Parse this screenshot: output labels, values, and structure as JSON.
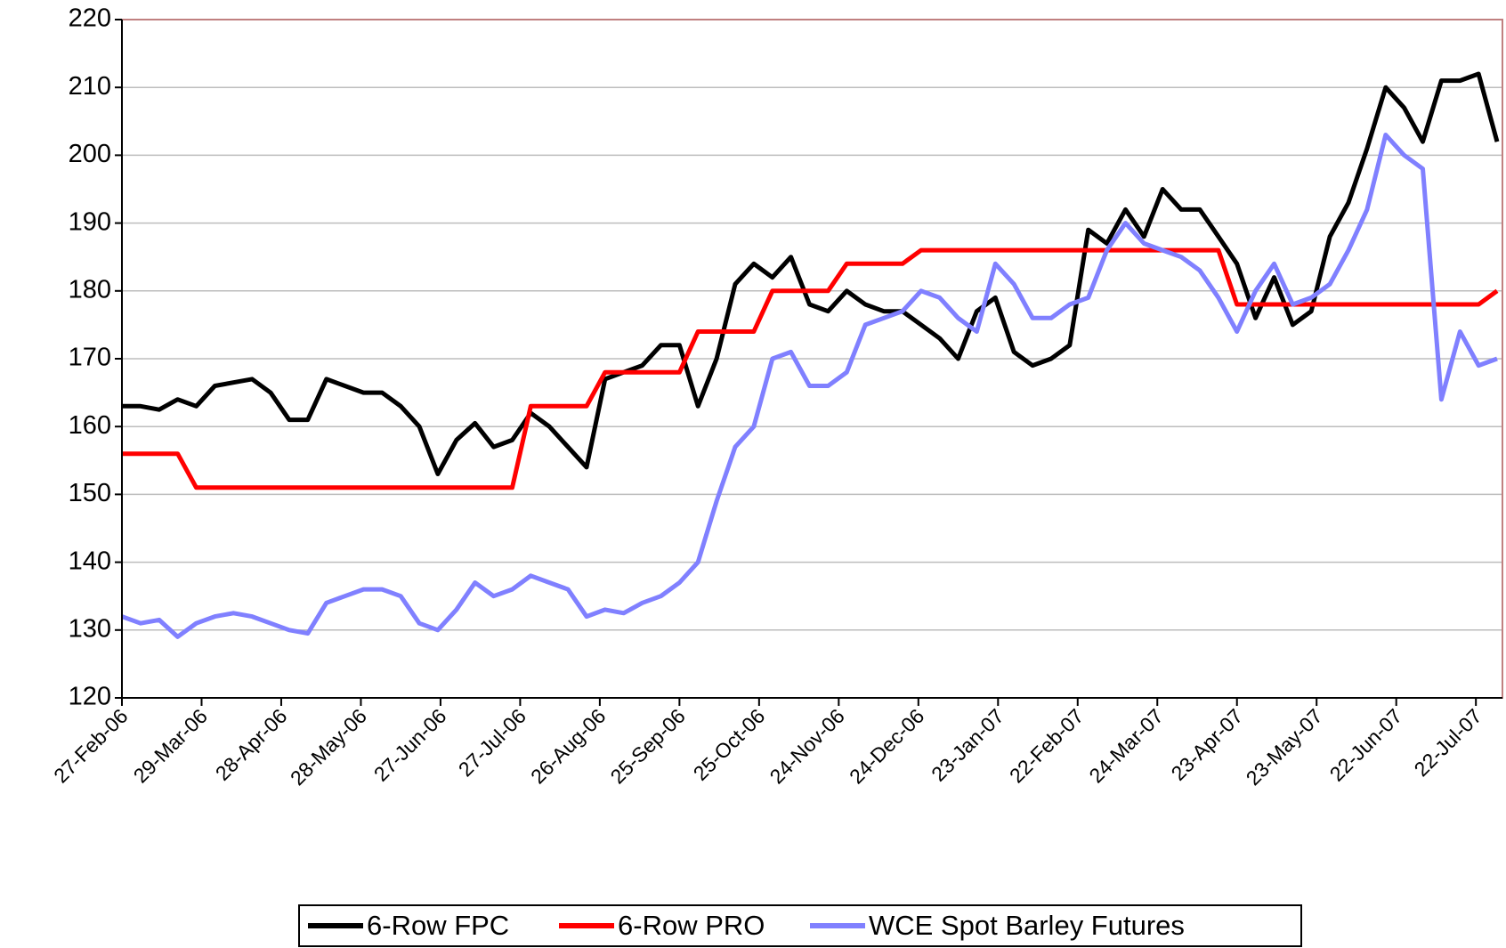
{
  "chart_data": {
    "type": "line",
    "x": [
      "2006-02-27",
      "2006-03-06",
      "2006-03-13",
      "2006-03-20",
      "2006-03-27",
      "2006-04-03",
      "2006-04-10",
      "2006-04-17",
      "2006-04-24",
      "2006-05-01",
      "2006-05-08",
      "2006-05-15",
      "2006-05-22",
      "2006-05-29",
      "2006-06-05",
      "2006-06-12",
      "2006-06-19",
      "2006-06-26",
      "2006-07-03",
      "2006-07-10",
      "2006-07-17",
      "2006-07-24",
      "2006-07-31",
      "2006-08-07",
      "2006-08-14",
      "2006-08-21",
      "2006-08-28",
      "2006-09-04",
      "2006-09-11",
      "2006-09-18",
      "2006-09-25",
      "2006-10-02",
      "2006-10-09",
      "2006-10-16",
      "2006-10-23",
      "2006-10-30",
      "2006-11-06",
      "2006-11-13",
      "2006-11-20",
      "2006-11-27",
      "2006-12-04",
      "2006-12-11",
      "2006-12-18",
      "2006-12-25",
      "2007-01-01",
      "2007-01-08",
      "2007-01-15",
      "2007-01-22",
      "2007-01-29",
      "2007-02-05",
      "2007-02-12",
      "2007-02-19",
      "2007-02-26",
      "2007-03-05",
      "2007-03-12",
      "2007-03-19",
      "2007-03-26",
      "2007-04-02",
      "2007-04-09",
      "2007-04-16",
      "2007-04-23",
      "2007-04-30",
      "2007-05-07",
      "2007-05-14",
      "2007-05-21",
      "2007-05-28",
      "2007-06-04",
      "2007-06-11",
      "2007-06-18",
      "2007-06-25",
      "2007-07-02",
      "2007-07-09",
      "2007-07-16",
      "2007-07-23",
      "2007-07-30"
    ],
    "series": [
      {
        "name": "6-Row FPC",
        "color": "#000000",
        "values": [
          163,
          163,
          162.5,
          164,
          163,
          166,
          166.5,
          167,
          165,
          161,
          161,
          167,
          166,
          165,
          165,
          163,
          160,
          153,
          158,
          160.5,
          157,
          158,
          162,
          160,
          157,
          154,
          167,
          168,
          169,
          172,
          172,
          163,
          170,
          181,
          184,
          182,
          185,
          178,
          177,
          180,
          178,
          177,
          177,
          175,
          173,
          170,
          177,
          179,
          171,
          169,
          170,
          172,
          189,
          187,
          192,
          188,
          195,
          192,
          192,
          188,
          184,
          176,
          182,
          175,
          177,
          188,
          193,
          201,
          210,
          207,
          202,
          211,
          211,
          212,
          202
        ]
      },
      {
        "name": "6-Row PRO",
        "color": "#ff0000",
        "values": [
          156,
          156,
          156,
          156,
          151,
          151,
          151,
          151,
          151,
          151,
          151,
          151,
          151,
          151,
          151,
          151,
          151,
          151,
          151,
          151,
          151,
          151,
          163,
          163,
          163,
          163,
          168,
          168,
          168,
          168,
          168,
          174,
          174,
          174,
          174,
          180,
          180,
          180,
          180,
          184,
          184,
          184,
          184,
          186,
          186,
          186,
          186,
          186,
          186,
          186,
          186,
          186,
          186,
          186,
          186,
          186,
          186,
          186,
          186,
          186,
          178,
          178,
          178,
          178,
          178,
          178,
          178,
          178,
          178,
          178,
          178,
          178,
          178,
          178,
          180
        ]
      },
      {
        "name": "WCE Spot Barley Futures",
        "color": "#8080ff",
        "values": [
          132,
          131,
          131.5,
          129,
          131,
          132,
          132.5,
          132,
          131,
          130,
          129.5,
          134,
          135,
          136,
          136,
          135,
          131,
          130,
          133,
          137,
          135,
          136,
          138,
          137,
          136,
          132,
          133,
          132.5,
          134,
          135,
          137,
          140,
          149,
          157,
          160,
          170,
          171,
          166,
          166,
          168,
          175,
          176,
          177,
          180,
          179,
          176,
          174,
          184,
          181,
          176,
          176,
          178,
          179,
          186,
          190,
          187,
          186,
          185,
          183,
          179,
          174,
          180,
          184,
          178,
          179,
          181,
          186,
          192,
          203,
          200,
          198,
          164,
          174,
          169,
          170
        ]
      }
    ],
    "xlim": [
      "2006-02-27",
      "2007-08-01"
    ],
    "xticks": [
      {
        "value": "2006-02-27",
        "label": "27-Feb-06"
      },
      {
        "value": "2006-03-29",
        "label": "29-Mar-06"
      },
      {
        "value": "2006-04-28",
        "label": "28-Apr-06"
      },
      {
        "value": "2006-05-28",
        "label": "28-May-06"
      },
      {
        "value": "2006-06-27",
        "label": "27-Jun-06"
      },
      {
        "value": "2006-07-27",
        "label": "27-Jul-06"
      },
      {
        "value": "2006-08-26",
        "label": "26-Aug-06"
      },
      {
        "value": "2006-09-25",
        "label": "25-Sep-06"
      },
      {
        "value": "2006-10-25",
        "label": "25-Oct-06"
      },
      {
        "value": "2006-11-24",
        "label": "24-Nov-06"
      },
      {
        "value": "2006-12-24",
        "label": "24-Dec-06"
      },
      {
        "value": "2007-01-23",
        "label": "23-Jan-07"
      },
      {
        "value": "2007-02-22",
        "label": "22-Feb-07"
      },
      {
        "value": "2007-03-24",
        "label": "24-Mar-07"
      },
      {
        "value": "2007-04-23",
        "label": "23-Apr-07"
      },
      {
        "value": "2007-05-23",
        "label": "23-May-07"
      },
      {
        "value": "2007-06-22",
        "label": "22-Jun-07"
      },
      {
        "value": "2007-07-22",
        "label": "22-Jul-07"
      }
    ],
    "ylim": [
      120,
      220
    ],
    "yticks": [
      120,
      130,
      140,
      150,
      160,
      170,
      180,
      190,
      200,
      210,
      220
    ],
    "grid": true
  }
}
